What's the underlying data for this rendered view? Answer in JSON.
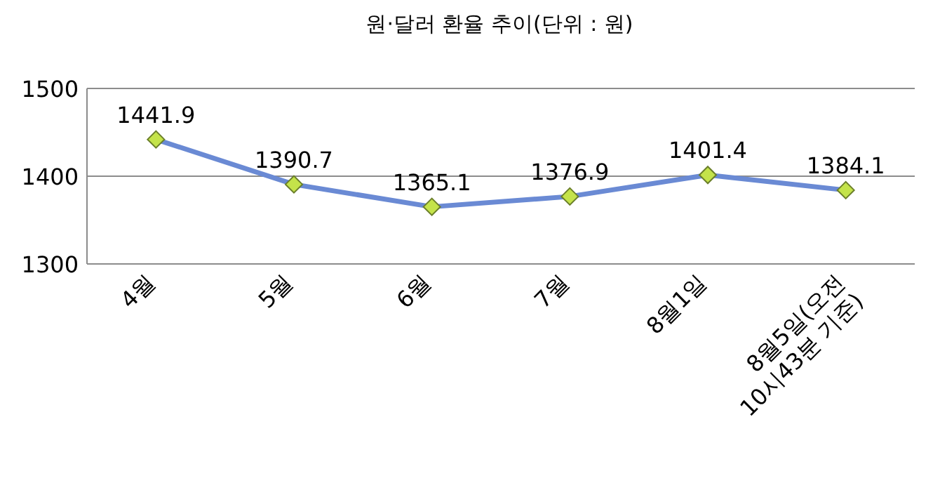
{
  "chart_data": {
    "type": "line",
    "title": "원·달러 환율 추이(단위 : 원)",
    "categories": [
      "4월",
      "5월",
      "6월",
      "7월",
      "8월1일",
      "8월5일(오전 10시43분 기준)"
    ],
    "series": [
      {
        "color": "#6a8ad4",
        "values": [
          1441.9,
          1390.7,
          1365.1,
          1376.9,
          1401.4,
          1384.1
        ]
      }
    ],
    "ylim": [
      1300,
      1500
    ],
    "yticks": [
      1300,
      1400,
      1500
    ],
    "grid": "y",
    "marker": "diamond",
    "data_labels": true
  }
}
